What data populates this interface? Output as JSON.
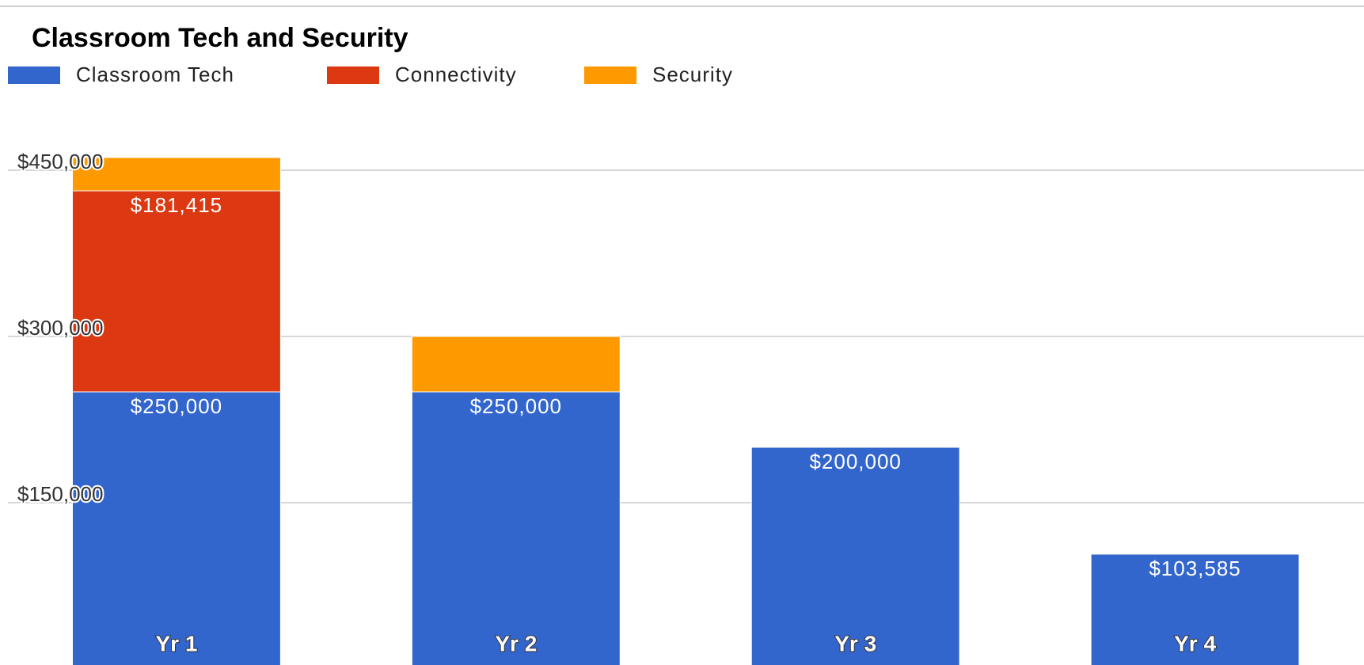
{
  "chart_data": {
    "type": "stacked_bar",
    "title": "Classroom Tech and Security",
    "categories": [
      "Yr 1",
      "Yr 2",
      "Yr 3",
      "Yr 4"
    ],
    "series": [
      {
        "name": "Classroom Tech",
        "color": "#3366cc",
        "values": [
          250000,
          250000,
          200000,
          103585
        ],
        "value_labels": [
          "$250,000",
          "$250,000",
          "$200,000",
          "$103,585"
        ]
      },
      {
        "name": "Connectivity",
        "color": "#dc3912",
        "values": [
          181415,
          null,
          null,
          null
        ],
        "value_labels": [
          "$181,415",
          null,
          null,
          null
        ]
      },
      {
        "name": "Security",
        "color": "#ff9900",
        "values": [
          30000,
          50000,
          null,
          null
        ]
      }
    ],
    "ylim": [
      0,
      600000
    ],
    "yticks": [
      {
        "value": 150000,
        "label": "$150,000"
      },
      {
        "value": 300000,
        "label": "$300,000"
      },
      {
        "value": 450000,
        "label": "$450,000"
      }
    ],
    "grid": true,
    "legend": "top"
  }
}
